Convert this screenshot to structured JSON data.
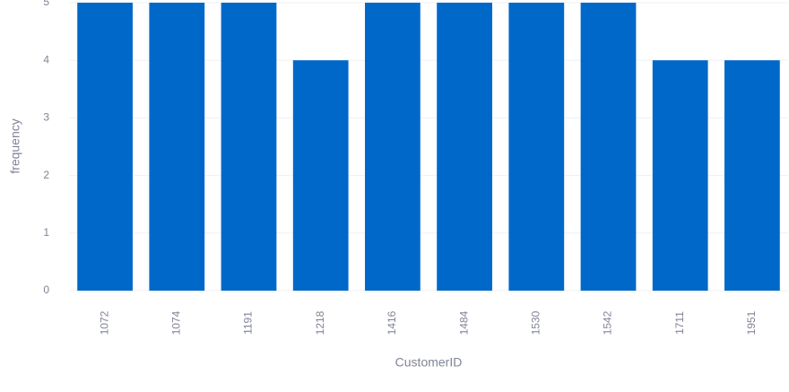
{
  "chart_data": {
    "type": "bar",
    "x_label": "CustomerID",
    "y_label": "frequency",
    "categories": [
      "1072",
      "1074",
      "1191",
      "1218",
      "1416",
      "1484",
      "1530",
      "1542",
      "1711",
      "1951"
    ],
    "values": [
      5,
      5,
      5,
      4,
      5,
      5,
      5,
      5,
      4,
      4
    ],
    "color": "#0068c9",
    "ylim": [
      0,
      5
    ],
    "yticks": [
      0,
      1,
      2,
      3,
      4,
      5
    ],
    "grid": true
  }
}
